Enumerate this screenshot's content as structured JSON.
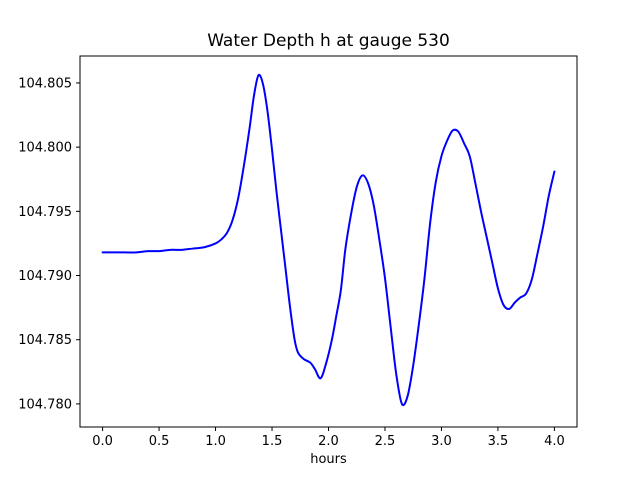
{
  "figure": {
    "background": "#ffffff"
  },
  "chart_data": {
    "type": "line",
    "title": "Water Depth h at gauge 530",
    "xlabel": "hours",
    "ylabel": "",
    "grid": false,
    "legend": null,
    "xlim": [
      -0.2,
      4.2
    ],
    "ylim": [
      104.7782,
      104.8071
    ],
    "xticks": [
      0.0,
      0.5,
      1.0,
      1.5,
      2.0,
      2.5,
      3.0,
      3.5,
      4.0
    ],
    "xtick_labels": [
      "0.0",
      "0.5",
      "1.0",
      "1.5",
      "2.0",
      "2.5",
      "3.0",
      "3.5",
      "4.0"
    ],
    "yticks": [
      104.78,
      104.785,
      104.79,
      104.795,
      104.8,
      104.805
    ],
    "ytick_labels": [
      "104.780",
      "104.785",
      "104.790",
      "104.795",
      "104.800",
      "104.805"
    ],
    "series": [
      {
        "name": "water-depth-h",
        "color": "#0000ff",
        "line_width": 2,
        "x": [
          0.0,
          0.1,
          0.2,
          0.3,
          0.4,
          0.5,
          0.6,
          0.7,
          0.8,
          0.9,
          1.0,
          1.05,
          1.1,
          1.15,
          1.2,
          1.25,
          1.3,
          1.34,
          1.38,
          1.42,
          1.46,
          1.5,
          1.54,
          1.58,
          1.62,
          1.66,
          1.7,
          1.73,
          1.78,
          1.84,
          1.88,
          1.93,
          1.98,
          2.03,
          2.07,
          2.11,
          2.15,
          2.2,
          2.25,
          2.3,
          2.35,
          2.4,
          2.45,
          2.5,
          2.55,
          2.6,
          2.65,
          2.7,
          2.75,
          2.8,
          2.85,
          2.9,
          2.95,
          3.0,
          3.05,
          3.1,
          3.15,
          3.2,
          3.25,
          3.3,
          3.35,
          3.4,
          3.45,
          3.5,
          3.55,
          3.6,
          3.65,
          3.7,
          3.75,
          3.8,
          3.85,
          3.9,
          3.95,
          4.0
        ],
        "y": [
          104.7918,
          104.7918,
          104.7918,
          104.7918,
          104.7919,
          104.7919,
          104.792,
          104.792,
          104.7921,
          104.7922,
          104.7925,
          104.7928,
          104.7933,
          104.7943,
          104.796,
          104.7985,
          104.8014,
          104.804,
          104.8056,
          104.8049,
          104.8028,
          104.7998,
          104.7965,
          104.7935,
          104.7905,
          104.7875,
          104.785,
          104.784,
          104.7835,
          104.7832,
          104.7827,
          104.782,
          104.7832,
          104.785,
          104.7869,
          104.7889,
          104.7921,
          104.7948,
          104.7969,
          104.7978,
          104.7972,
          104.7955,
          104.7928,
          104.7898,
          104.786,
          104.7823,
          104.78,
          104.7806,
          104.783,
          104.7862,
          104.7898,
          104.7941,
          104.7973,
          104.7993,
          104.8005,
          104.8013,
          104.8012,
          104.8003,
          104.7993,
          104.7972,
          104.795,
          104.793,
          104.791,
          104.789,
          104.7877,
          104.7874,
          104.7879,
          104.7883,
          104.7886,
          104.7897,
          104.7917,
          104.7938,
          104.7962,
          104.7981
        ]
      }
    ]
  }
}
